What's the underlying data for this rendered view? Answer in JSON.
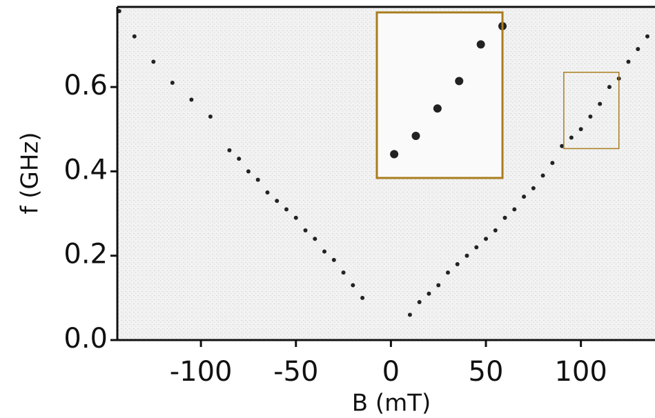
{
  "chart_data": {
    "type": "scatter",
    "x_label": "B (mT)",
    "y_label": "f (GHz)",
    "x": [
      -143,
      -135,
      -125,
      -115,
      -105,
      -95,
      -85,
      -80,
      -75,
      -70,
      -65,
      -60,
      -55,
      -50,
      -45,
      -40,
      -35,
      -30,
      -25,
      -20,
      -15,
      10,
      15,
      20,
      25,
      30,
      35,
      40,
      45,
      50,
      55,
      60,
      65,
      70,
      75,
      80,
      85,
      90,
      95,
      100,
      105,
      110,
      115,
      120,
      125,
      130,
      135
    ],
    "values": [
      0.78,
      0.72,
      0.66,
      0.61,
      0.57,
      0.53,
      0.45,
      0.43,
      0.4,
      0.38,
      0.35,
      0.33,
      0.31,
      0.29,
      0.26,
      0.24,
      0.21,
      0.19,
      0.16,
      0.13,
      0.1,
      0.06,
      0.09,
      0.11,
      0.13,
      0.16,
      0.18,
      0.2,
      0.22,
      0.24,
      0.26,
      0.29,
      0.31,
      0.34,
      0.36,
      0.39,
      0.42,
      0.46,
      0.48,
      0.5,
      0.53,
      0.56,
      0.6,
      0.62,
      0.66,
      0.69,
      0.72
    ],
    "color": "#222222",
    "xlim": [
      -144,
      139
    ],
    "ylim": [
      0,
      0.79
    ],
    "xticks": [
      -100,
      -50,
      0,
      50,
      100
    ],
    "yticks": [
      {
        "value": 0,
        "label": "0.0"
      },
      0.2,
      0.4,
      0.6
    ],
    "zoom_region": {
      "xlim": [
        91,
        120
      ],
      "ylim": [
        0.454,
        0.635
      ],
      "color": "#a87d1c"
    }
  }
}
